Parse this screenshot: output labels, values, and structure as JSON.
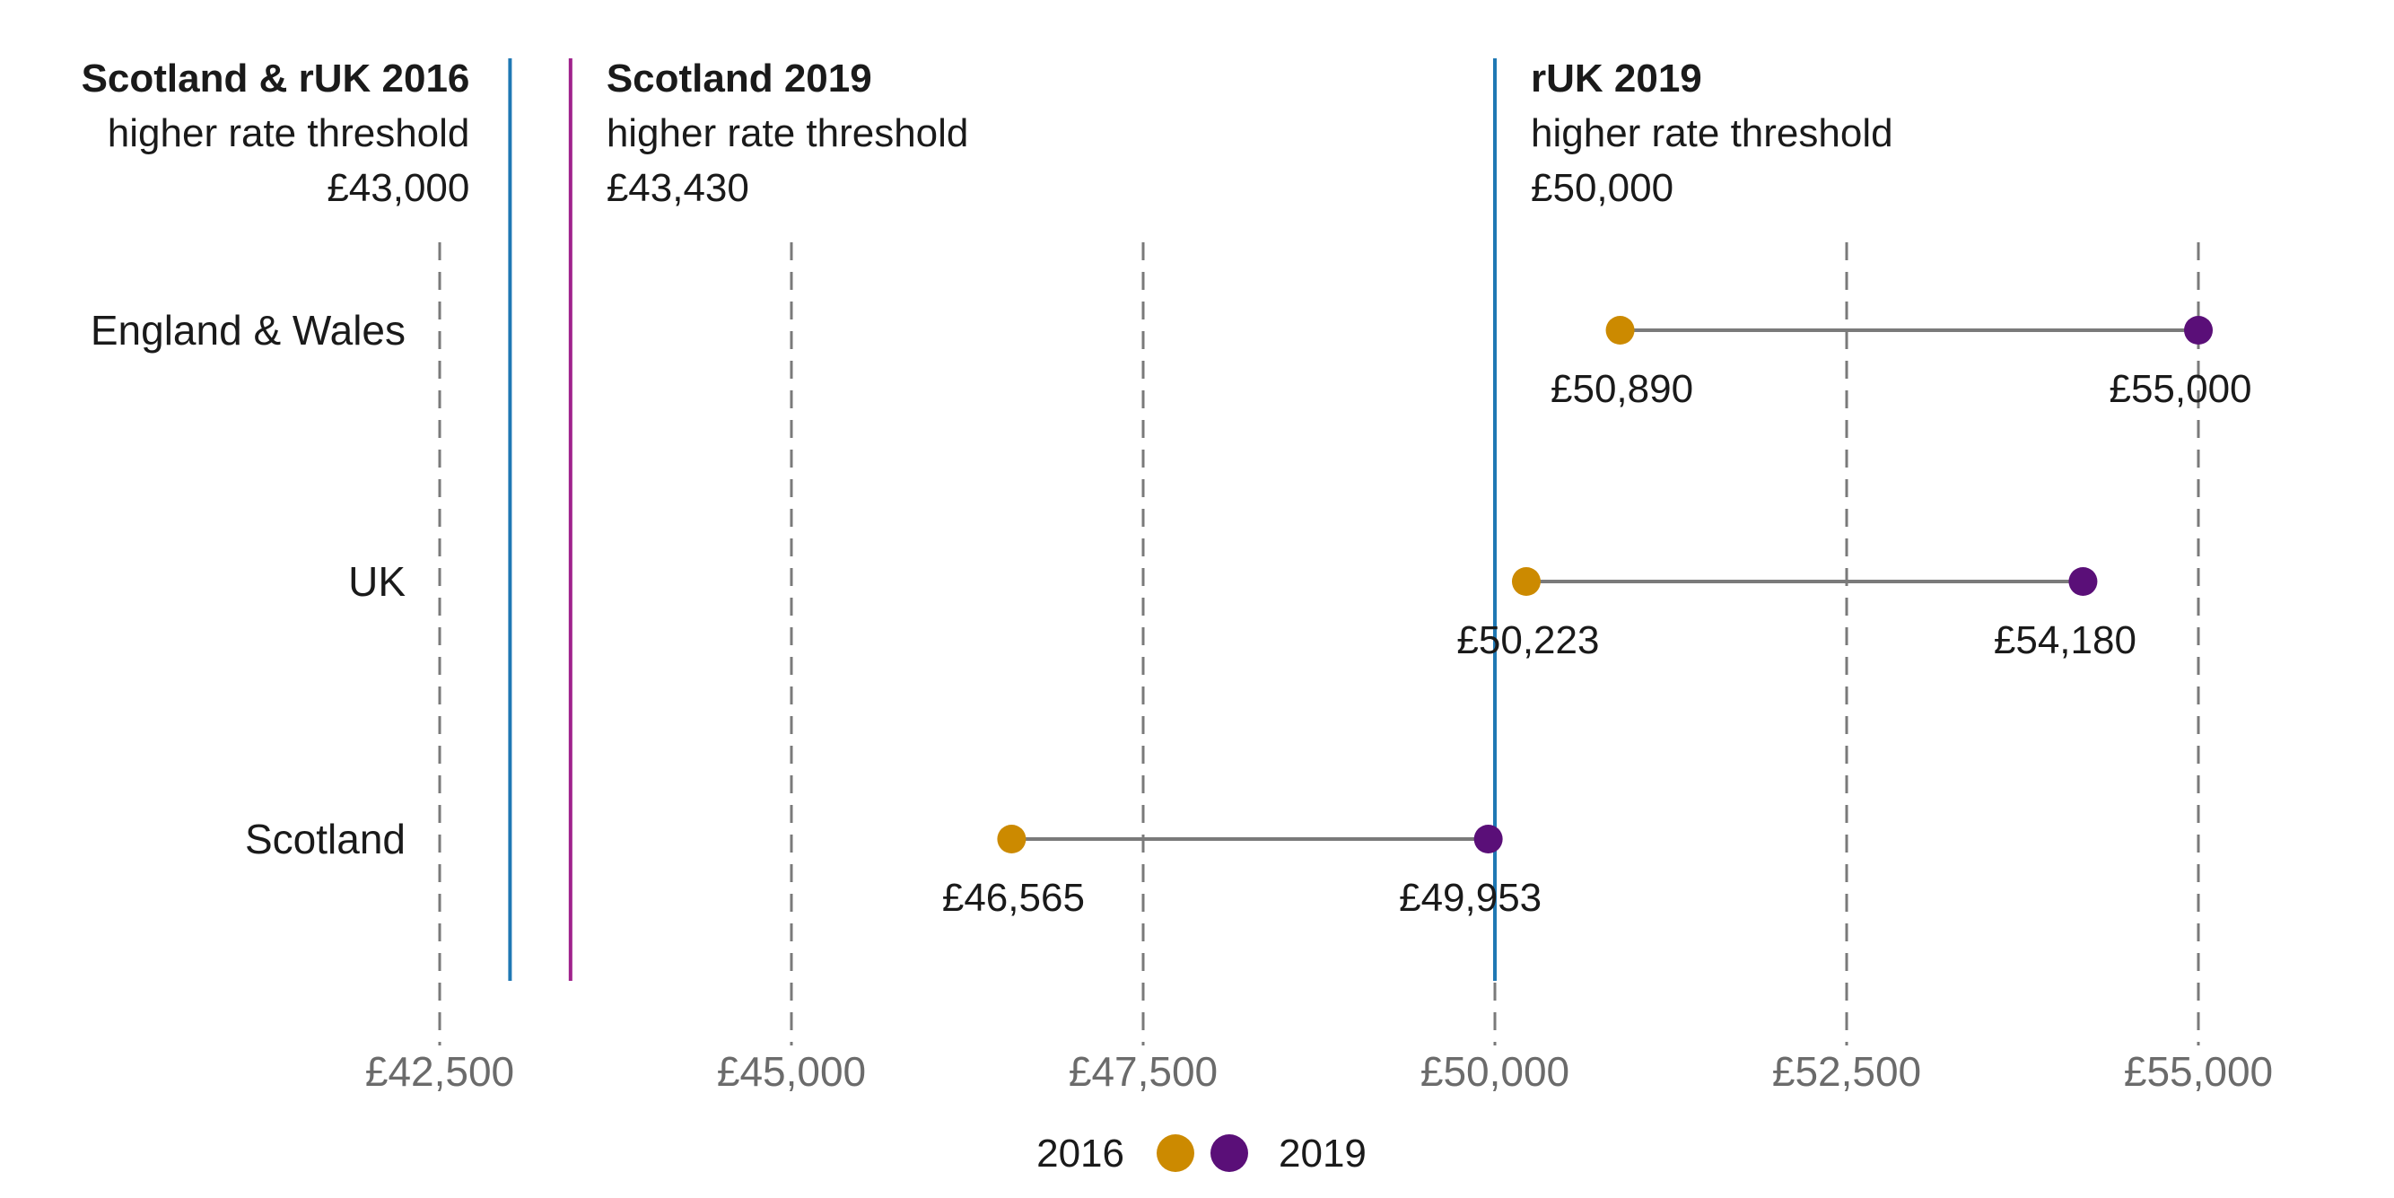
{
  "chart_data": {
    "type": "dumbbell",
    "categories": [
      "England & Wales",
      "UK",
      "Scotland"
    ],
    "series": [
      {
        "name": "2016",
        "color": "#CC8A00",
        "values": [
          50890,
          50223,
          46565
        ]
      },
      {
        "name": "2019",
        "color": "#5A0F78",
        "values": [
          55000,
          54180,
          49953
        ]
      }
    ],
    "value_labels": {
      "2016": [
        "£50,890",
        "£50,223",
        "£46,565"
      ],
      "2019": [
        "£55,000",
        "£54,180",
        "£49,953"
      ]
    },
    "xlim": [
      42500,
      55000
    ],
    "xticks": [
      42500,
      45000,
      47500,
      50000,
      52500,
      55000
    ],
    "xtick_labels": [
      "£42,500",
      "£45,000",
      "£47,500",
      "£50,000",
      "£52,500",
      "£55,000"
    ],
    "grid": "vertical dashed",
    "legend_position": "bottom-center",
    "reference_lines": [
      {
        "value": 43000,
        "color": "#1F78B4",
        "title": "Scotland & rUK 2016",
        "subtitle": "higher rate threshold",
        "amount": "£43,000",
        "align": "left-of-line"
      },
      {
        "value": 43430,
        "color": "#A0228C",
        "title": "Scotland 2019",
        "subtitle": "higher rate threshold",
        "amount": "£43,430",
        "align": "right-of-line"
      },
      {
        "value": 50000,
        "color": "#1F78B4",
        "title": "rUK 2019",
        "subtitle": "higher rate threshold",
        "amount": "£50,000",
        "align": "right-of-line"
      }
    ],
    "connector_color": "#7a7a7a",
    "grid_color": "#7a7a7a"
  }
}
